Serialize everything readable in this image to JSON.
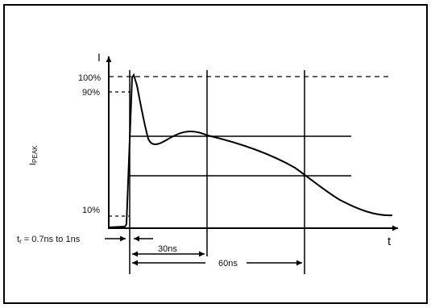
{
  "diagram": {
    "y_axis_symbol": "I",
    "x_axis_symbol": "t",
    "y_axis_title_main": "I",
    "y_axis_title_sub": "PEAK",
    "level_100": "100%",
    "level_90": "90%",
    "level_10": "10%",
    "rise_time_prefix": "t",
    "rise_time_sub": "r",
    "rise_time_suffix": " = 0.7ns to 1ns",
    "interval_30": "30ns",
    "interval_60": "60ns"
  }
}
